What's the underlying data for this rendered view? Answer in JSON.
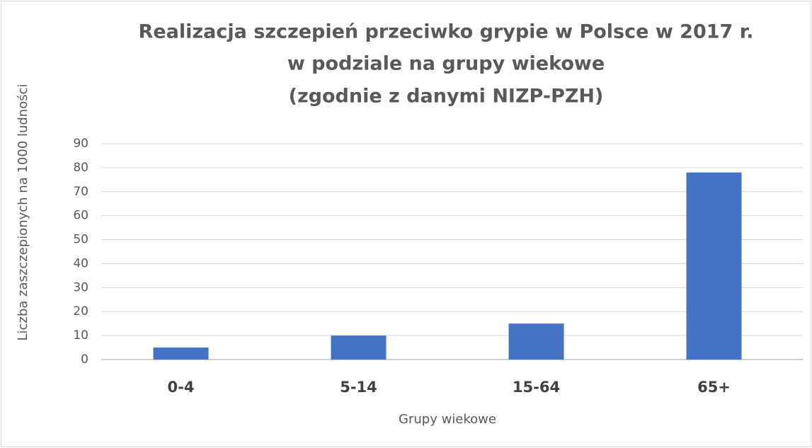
{
  "chart_data": {
    "type": "bar",
    "title": [
      "Realizacja szczepień przeciwko grypie w Polsce w 2017 r.",
      "w podziale na grupy wiekowe",
      "(zgodnie z danymi NIZP-PZH)"
    ],
    "x_label": "Grupy wiekowe",
    "y_label": "Liczba zaszczepionych na 1000 ludności",
    "categories": [
      "0-4",
      "5-14",
      "15-64",
      "65+"
    ],
    "values": [
      5,
      10,
      15,
      78
    ],
    "color": "#4472c4",
    "ylim": [
      0,
      90
    ],
    "yticks": [
      0,
      10,
      20,
      30,
      40,
      50,
      60,
      70,
      80,
      90
    ],
    "grid": true
  }
}
